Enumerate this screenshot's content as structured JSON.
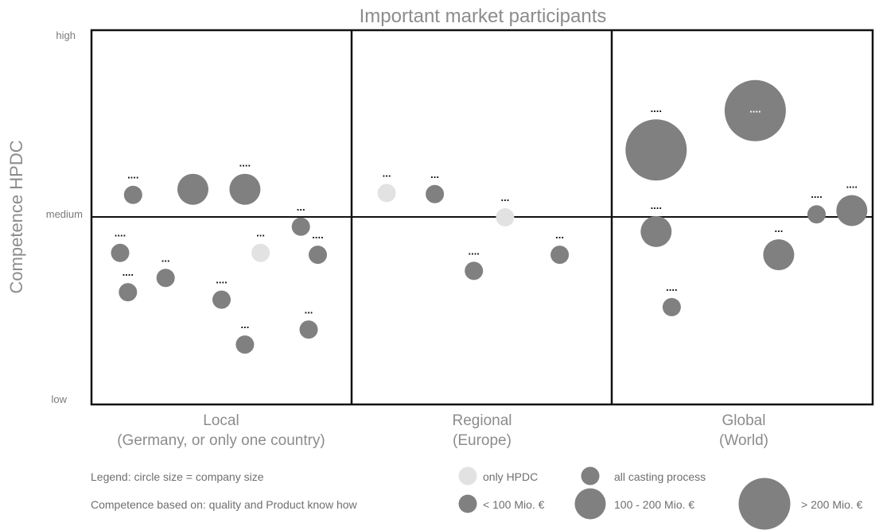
{
  "chart_data": {
    "type": "scatter",
    "title": "Important market participants",
    "ylabel": "Competence HPDC",
    "y_ticks": [
      {
        "label": "high",
        "value": 1
      },
      {
        "label": "medium",
        "value": 0.5
      },
      {
        "label": "low",
        "value": 0
      }
    ],
    "ylim": [
      0,
      1
    ],
    "grid": true,
    "regions": [
      {
        "name": "Local",
        "subtitle": "(Germany, or only one country)"
      },
      {
        "name": "Regional",
        "subtitle": "(Europe)"
      },
      {
        "name": "Global",
        "subtitle": "(World)"
      }
    ],
    "size_classes": {
      "small": "< 100 Mio. €",
      "medium": "100 - 200 Mio. €",
      "large": "> 200 Mio. €"
    },
    "colors": {
      "all_casting": "#808080",
      "only_hpdc": "#e2e2e2",
      "line": "#111111"
    },
    "points": [
      {
        "region": "Local",
        "x": 0.16,
        "y": 0.56,
        "size": "small",
        "type": "all",
        "label": "...."
      },
      {
        "region": "Local",
        "x": 0.39,
        "y": 0.575,
        "size": "medium",
        "type": "all",
        "label": ""
      },
      {
        "region": "Local",
        "x": 0.59,
        "y": 0.575,
        "size": "medium",
        "type": "all",
        "label": "...."
      },
      {
        "region": "Local",
        "x": 0.11,
        "y": 0.405,
        "size": "small",
        "type": "all",
        "label": "...."
      },
      {
        "region": "Local",
        "x": 0.14,
        "y": 0.3,
        "size": "small",
        "type": "all",
        "label": "...."
      },
      {
        "region": "Local",
        "x": 0.285,
        "y": 0.338,
        "size": "small",
        "type": "all",
        "label": "..."
      },
      {
        "region": "Local",
        "x": 0.5,
        "y": 0.28,
        "size": "small",
        "type": "all",
        "label": "...."
      },
      {
        "region": "Local",
        "x": 0.59,
        "y": 0.16,
        "size": "small",
        "type": "all",
        "label": "..."
      },
      {
        "region": "Local",
        "x": 0.65,
        "y": 0.405,
        "size": "small",
        "type": "hpdc",
        "label": "..."
      },
      {
        "region": "Local",
        "x": 0.805,
        "y": 0.475,
        "size": "small",
        "type": "all",
        "label": "..."
      },
      {
        "region": "Local",
        "x": 0.87,
        "y": 0.4,
        "size": "small",
        "type": "all",
        "label": "...."
      },
      {
        "region": "Local",
        "x": 0.835,
        "y": 0.2,
        "size": "small",
        "type": "all",
        "label": "..."
      },
      {
        "region": "Regional",
        "x": 0.135,
        "y": 0.565,
        "size": "small",
        "type": "hpdc",
        "label": "..."
      },
      {
        "region": "Regional",
        "x": 0.32,
        "y": 0.562,
        "size": "small",
        "type": "all",
        "label": "..."
      },
      {
        "region": "Regional",
        "x": 0.59,
        "y": 0.5,
        "size": "small",
        "type": "hpdc",
        "label": "..."
      },
      {
        "region": "Regional",
        "x": 0.47,
        "y": 0.357,
        "size": "small",
        "type": "all",
        "label": "...."
      },
      {
        "region": "Regional",
        "x": 0.8,
        "y": 0.4,
        "size": "small",
        "type": "all",
        "label": "..."
      },
      {
        "region": "Global",
        "x": 0.17,
        "y": 0.68,
        "size": "large",
        "type": "all",
        "label": "...."
      },
      {
        "region": "Global",
        "x": 0.55,
        "y": 0.785,
        "size": "large",
        "type": "all",
        "label": "....",
        "label_inside": true
      },
      {
        "region": "Global",
        "x": 0.17,
        "y": 0.462,
        "size": "medium",
        "type": "all",
        "label": "...."
      },
      {
        "region": "Global",
        "x": 0.23,
        "y": 0.26,
        "size": "small",
        "type": "all",
        "label": "...."
      },
      {
        "region": "Global",
        "x": 0.64,
        "y": 0.4,
        "size": "medium",
        "type": "all",
        "label": "..."
      },
      {
        "region": "Global",
        "x": 0.785,
        "y": 0.508,
        "size": "small",
        "type": "all",
        "label": "...."
      },
      {
        "region": "Global",
        "x": 0.92,
        "y": 0.518,
        "size": "medium",
        "type": "all",
        "label": "...."
      }
    ]
  },
  "legend": {
    "line1": "Legend: circle size = company size",
    "line2": "Competence based on: quality and Product know how",
    "only_hpdc": "only HPDC",
    "all_casting": "all casting process",
    "small": "< 100 Mio. €",
    "medium": "100 - 200 Mio. €",
    "large": "> 200 Mio. €"
  }
}
